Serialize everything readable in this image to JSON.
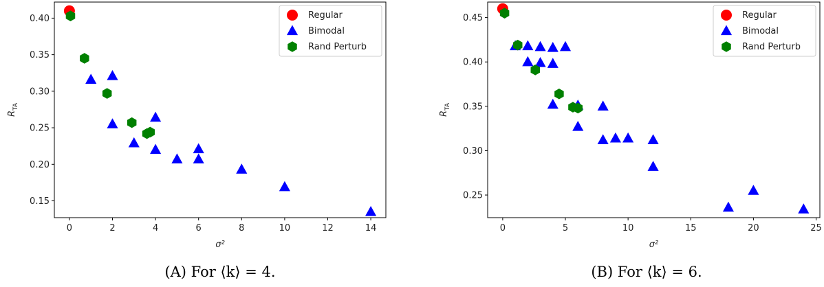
{
  "chart_data": [
    {
      "type": "scatter",
      "caption": "(A) For ⟨k⟩ = 4.",
      "xlabel": "σ²",
      "ylabel": "R_TA",
      "xlim": [
        -0.7,
        14.7
      ],
      "ylim": [
        0.127,
        0.422
      ],
      "xticks": [
        0,
        2,
        4,
        6,
        8,
        10,
        12,
        14
      ],
      "xtick_labels": [
        "0",
        "2",
        "4",
        "6",
        "8",
        "10",
        "12",
        "14"
      ],
      "yticks": [
        0.15,
        0.2,
        0.25,
        0.3,
        0.35,
        0.4
      ],
      "ytick_labels": [
        "0.15",
        "0.20",
        "0.25",
        "0.30",
        "0.35",
        "0.40"
      ],
      "grid": false,
      "legend": "top-right",
      "series": [
        {
          "name": "Regular",
          "marker": "circle",
          "color": "#ff0000",
          "points": [
            [
              0,
              0.41
            ]
          ]
        },
        {
          "name": "Bimodal",
          "marker": "triangle",
          "color": "#0000ff",
          "points": [
            [
              1,
              0.316
            ],
            [
              2,
              0.321
            ],
            [
              2,
              0.255
            ],
            [
              3,
              0.229
            ],
            [
              4,
              0.264
            ],
            [
              4,
              0.22
            ],
            [
              5,
              0.207
            ],
            [
              6,
              0.221
            ],
            [
              6,
              0.207
            ],
            [
              8,
              0.193
            ],
            [
              10,
              0.169
            ],
            [
              14,
              0.135
            ]
          ]
        },
        {
          "name": "Rand Perturb",
          "marker": "hexagon",
          "color": "#008000",
          "points": [
            [
              0.05,
              0.403
            ],
            [
              0.7,
              0.345
            ],
            [
              1.75,
              0.297
            ],
            [
              2.9,
              0.257
            ],
            [
              3.6,
              0.242
            ],
            [
              3.75,
              0.244
            ]
          ]
        }
      ]
    },
    {
      "type": "scatter",
      "caption": "(B) For ⟨k⟩ = 6.",
      "xlabel": "σ²",
      "ylabel": "R_TA",
      "xlim": [
        -1.2,
        25.3
      ],
      "ylim": [
        0.2245,
        0.4675
      ],
      "xticks": [
        0,
        5,
        10,
        15,
        20,
        25
      ],
      "xtick_labels": [
        "0",
        "5",
        "10",
        "15",
        "20",
        "25"
      ],
      "yticks": [
        0.25,
        0.3,
        0.35,
        0.4,
        0.45
      ],
      "ytick_labels": [
        "0.25",
        "0.30",
        "0.35",
        "0.40",
        "0.45"
      ],
      "grid": false,
      "legend": "top-right",
      "series": [
        {
          "name": "Regular",
          "marker": "circle",
          "color": "#ff0000",
          "points": [
            [
              0,
              0.46
            ]
          ]
        },
        {
          "name": "Bimodal",
          "marker": "triangle",
          "color": "#0000ff",
          "points": [
            [
              1,
              0.418
            ],
            [
              2,
              0.418
            ],
            [
              2,
              0.4
            ],
            [
              3,
              0.417
            ],
            [
              3,
              0.399
            ],
            [
              4,
              0.416
            ],
            [
              4,
              0.398
            ],
            [
              5,
              0.417
            ],
            [
              4,
              0.352
            ],
            [
              6,
              0.351
            ],
            [
              6,
              0.327
            ],
            [
              8,
              0.35
            ],
            [
              8,
              0.312
            ],
            [
              9,
              0.314
            ],
            [
              10,
              0.314
            ],
            [
              12,
              0.312
            ],
            [
              12,
              0.282
            ],
            [
              18,
              0.236
            ],
            [
              20,
              0.255
            ],
            [
              24,
              0.234
            ]
          ]
        },
        {
          "name": "Rand Perturb",
          "marker": "hexagon",
          "color": "#008000",
          "points": [
            [
              0.15,
              0.455
            ],
            [
              1.2,
              0.419
            ],
            [
              2.6,
              0.391
            ],
            [
              4.5,
              0.364
            ],
            [
              5.6,
              0.349
            ],
            [
              6.0,
              0.348
            ]
          ]
        }
      ]
    }
  ]
}
